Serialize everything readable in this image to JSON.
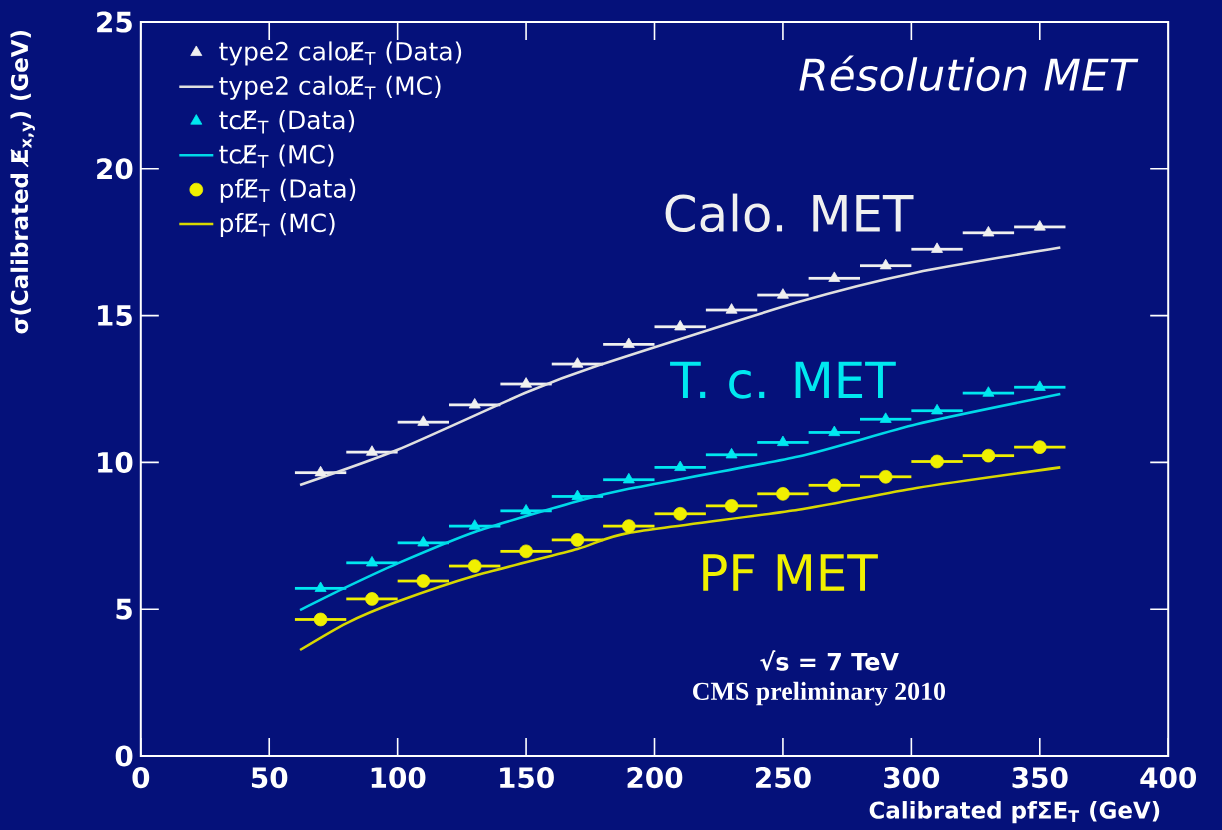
{
  "chart_data": {
    "type": "line",
    "xlabel": "Calibrated pfΣE$_{T}$ (GeV)",
    "ylabel": "σ(Calibrated E̸$_{x,y}$) (GeV)",
    "xlim": [
      0,
      400
    ],
    "ylim": [
      0,
      25
    ],
    "xticks": [
      0,
      50,
      100,
      150,
      200,
      250,
      300,
      350,
      400
    ],
    "yticks": [
      0,
      5,
      10,
      15,
      20,
      25
    ],
    "grid": false,
    "legend": "top left",
    "series": [
      {
        "name": "type2 caloE̸$_{T}$ (Data)",
        "type": "scatter",
        "marker": "triangle",
        "color": "#f0f0f0",
        "x": [
          70,
          90,
          110,
          130,
          150,
          170,
          190,
          210,
          230,
          250,
          270,
          290,
          310,
          330,
          350
        ],
        "values": [
          9.65,
          10.35,
          11.37,
          11.96,
          12.67,
          13.35,
          14.02,
          14.62,
          15.19,
          15.7,
          16.27,
          16.7,
          17.26,
          17.82,
          18.02
        ],
        "xerrors": [
          10,
          10,
          10,
          10,
          10,
          10,
          10,
          10,
          10,
          10,
          10,
          10,
          10,
          10,
          10
        ]
      },
      {
        "name": "type2 caloE̸$_{T}$ (MC)",
        "color": "#e0e0e0",
        "x": [
          62,
          100,
          150,
          178,
          256,
          302,
          358
        ],
        "values": [
          9.23,
          10.43,
          12.38,
          13.3,
          15.46,
          16.47,
          17.32
        ]
      },
      {
        "name": "tcE̸$_{T}$ (Data)",
        "type": "scatter",
        "marker": "triangle",
        "color": "#00e8f0",
        "x": [
          70,
          90,
          110,
          130,
          150,
          170,
          190,
          210,
          230,
          250,
          270,
          290,
          310,
          330,
          350
        ],
        "values": [
          5.71,
          6.58,
          7.26,
          7.83,
          8.35,
          8.84,
          9.41,
          9.83,
          10.26,
          10.68,
          11.02,
          11.47,
          11.76,
          12.36,
          12.56
        ],
        "xerrors": [
          10,
          10,
          10,
          10,
          10,
          10,
          10,
          10,
          10,
          10,
          10,
          10,
          10,
          10,
          10
        ]
      },
      {
        "name": "tcE̸$_{T}$ (MC)",
        "color": "#00d8e8",
        "x": [
          62,
          80,
          100,
          130,
          170,
          190,
          256,
          302,
          358
        ],
        "values": [
          4.97,
          5.75,
          6.56,
          7.63,
          8.68,
          9.1,
          10.2,
          11.3,
          12.33
        ]
      },
      {
        "name": "pfE̸$_{T}$ (Data)",
        "type": "scatter",
        "marker": "circle",
        "color": "#f0f000",
        "x": [
          70,
          90,
          110,
          130,
          150,
          170,
          190,
          210,
          230,
          250,
          270,
          290,
          310,
          330,
          350
        ],
        "values": [
          4.65,
          5.35,
          5.96,
          6.47,
          6.97,
          7.36,
          7.83,
          8.25,
          8.52,
          8.93,
          9.22,
          9.51,
          10.03,
          10.23,
          10.52
        ],
        "xerrors": [
          10,
          10,
          10,
          10,
          10,
          10,
          10,
          10,
          10,
          10,
          10,
          10,
          10,
          10,
          10
        ]
      },
      {
        "name": "pfE̸$_{T}$ (MC)",
        "color": "#d8d800",
        "x": [
          62,
          80,
          100,
          130,
          170,
          190,
          256,
          302,
          358
        ],
        "values": [
          3.61,
          4.52,
          5.26,
          6.14,
          7.05,
          7.6,
          8.39,
          9.13,
          9.83
        ]
      }
    ],
    "annotations": [
      "Résolution MET",
      "Calo. MET",
      "T. c. MET",
      "PF MET",
      "√s = 7 TeV",
      "CMS preliminary 2010"
    ]
  }
}
